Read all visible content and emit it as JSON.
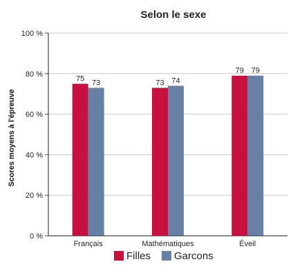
{
  "chart_data": {
    "type": "bar",
    "title": "Selon le sexe",
    "xlabel": "",
    "ylabel": "Scores moyens à l'épreuve",
    "categories": [
      "Français",
      "Mathématiques",
      "Éveil"
    ],
    "series": [
      {
        "name": "Filles",
        "values": [
          75,
          73,
          79
        ],
        "color": "#c8103e"
      },
      {
        "name": "Garcons",
        "values": [
          73,
          74,
          79
        ],
        "color": "#6680a6"
      }
    ],
    "ylim": [
      0,
      100
    ],
    "yticks": [
      0,
      20,
      40,
      60,
      80,
      100
    ],
    "ytick_labels": [
      "0 %",
      "20 %",
      "40 %",
      "60 %",
      "80 %",
      "100 %"
    ],
    "data_labels": [
      [
        "75",
        "73",
        "79"
      ],
      [
        "73",
        "74",
        "79"
      ]
    ],
    "grid": true,
    "legend": "bottom-center"
  }
}
